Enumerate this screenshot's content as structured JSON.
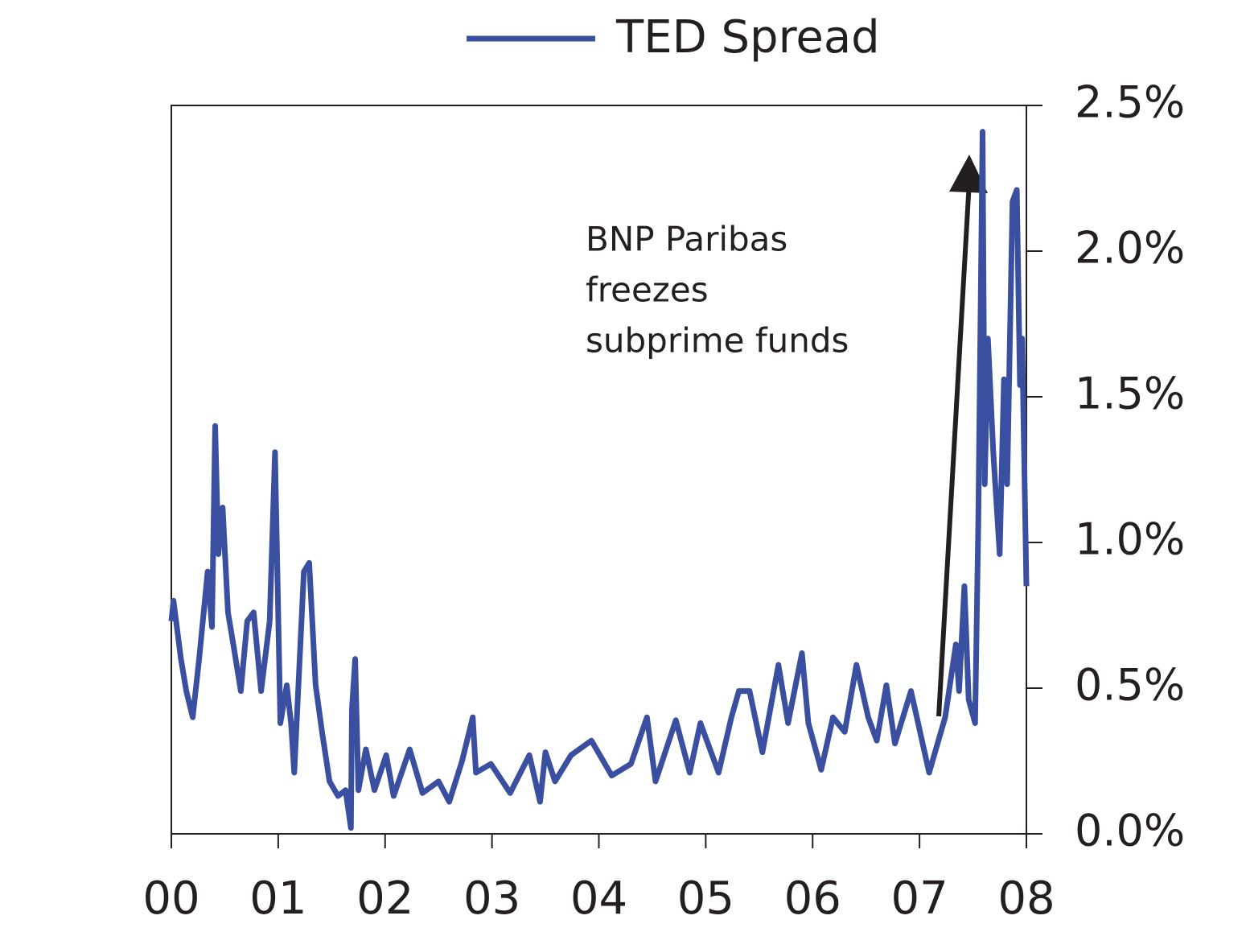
{
  "chart_data": {
    "type": "line",
    "annotation": [
      "BNP Paribas",
      "freezes",
      "subprime funds"
    ],
    "legend": "top",
    "x": [
      0,
      0.02,
      0.09,
      0.14,
      0.2,
      0.26,
      0.34,
      0.38,
      0.41,
      0.44,
      0.48,
      0.53,
      0.58,
      0.65,
      0.71,
      0.77,
      0.84,
      0.92,
      0.97,
      1.02,
      1.08,
      1.12,
      1.15,
      1.24,
      1.29,
      1.35,
      1.41,
      1.48,
      1.56,
      1.63,
      1.68,
      1.69,
      1.72,
      1.75,
      1.82,
      1.9,
      2.01,
      2.08,
      2.23,
      2.35,
      2.5,
      2.6,
      2.72,
      2.82,
      2.85,
      2.99,
      3.17,
      3.35,
      3.45,
      3.5,
      3.59,
      3.74,
      3.93,
      4.12,
      4.3,
      4.45,
      4.53,
      4.72,
      4.85,
      4.95,
      5.12,
      5.24,
      5.31,
      5.41,
      5.53,
      5.68,
      5.77,
      5.9,
      5.96,
      6.08,
      6.19,
      6.3,
      6.41,
      6.52,
      6.6,
      6.69,
      6.77,
      6.92,
      7.09,
      7.24,
      7.34,
      7.37,
      7.42,
      7.46,
      7.52,
      7.55,
      7.59,
      7.61,
      7.64,
      7.69,
      7.75,
      7.79,
      7.82,
      7.87,
      7.91,
      7.94,
      7.96,
      8.0
    ],
    "series": [
      {
        "name": "TED Spread",
        "color": "#3a4fa0",
        "values": [
          0.73,
          0.8,
          0.6,
          0.49,
          0.4,
          0.6,
          0.9,
          0.71,
          1.4,
          0.96,
          1.12,
          0.76,
          0.65,
          0.49,
          0.73,
          0.76,
          0.49,
          0.73,
          1.31,
          0.38,
          0.51,
          0.38,
          0.21,
          0.9,
          0.93,
          0.51,
          0.35,
          0.18,
          0.13,
          0.15,
          0.02,
          0.43,
          0.6,
          0.15,
          0.29,
          0.15,
          0.27,
          0.13,
          0.29,
          0.14,
          0.18,
          0.11,
          0.25,
          0.4,
          0.21,
          0.24,
          0.14,
          0.27,
          0.11,
          0.28,
          0.18,
          0.27,
          0.32,
          0.2,
          0.24,
          0.4,
          0.18,
          0.39,
          0.21,
          0.38,
          0.21,
          0.4,
          0.49,
          0.49,
          0.28,
          0.58,
          0.38,
          0.62,
          0.38,
          0.22,
          0.4,
          0.35,
          0.58,
          0.4,
          0.32,
          0.51,
          0.31,
          0.49,
          0.21,
          0.4,
          0.65,
          0.49,
          0.85,
          0.46,
          0.38,
          1.07,
          2.41,
          1.2,
          1.7,
          1.31,
          0.96,
          1.56,
          1.2,
          2.17,
          2.21,
          1.54,
          1.7,
          0.85
        ]
      }
    ],
    "xlim": [
      0,
      8
    ],
    "xticks": [
      {
        "value": 0,
        "label": "00"
      },
      {
        "value": 1,
        "label": "01"
      },
      {
        "value": 2,
        "label": "02"
      },
      {
        "value": 3,
        "label": "03"
      },
      {
        "value": 4,
        "label": "04"
      },
      {
        "value": 5,
        "label": "05"
      },
      {
        "value": 6,
        "label": "06"
      },
      {
        "value": 7,
        "label": "07"
      },
      {
        "value": 8,
        "label": "08"
      }
    ],
    "ylim": [
      0,
      2.5
    ],
    "yticks": [
      {
        "value": 0,
        "label": "0.0%"
      },
      {
        "value": 0.5,
        "label": "0.5%"
      },
      {
        "value": 1,
        "label": "1.0%"
      },
      {
        "value": 1.5,
        "label": "1.5%"
      },
      {
        "value": 2,
        "label": "2.0%"
      },
      {
        "value": 2.5,
        "label": "2.5%"
      }
    ],
    "grid": false
  }
}
